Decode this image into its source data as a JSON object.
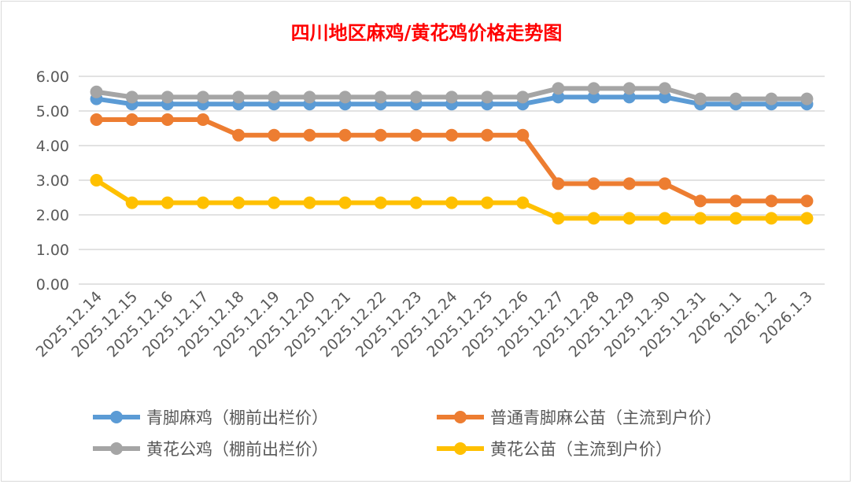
{
  "chart_data": {
    "type": "line",
    "title": "四川地区麻鸡/黄花鸡价格走势图",
    "title_color": "#ff0000",
    "categories": [
      "2025.12.14",
      "2025.12.15",
      "2025.12.16",
      "2025.12.17",
      "2025.12.18",
      "2025.12.19",
      "2025.12.20",
      "2025.12.21",
      "2025.12.22",
      "2025.12.23",
      "2025.12.24",
      "2025.12.25",
      "2025.12.26",
      "2025.12.27",
      "2025.12.28",
      "2025.12.29",
      "2025.12.30",
      "2025.12.31",
      "2026.1.1",
      "2026.1.2",
      "2026.1.3"
    ],
    "ylim": [
      0,
      6
    ],
    "yticks": [
      "0.00",
      "1.00",
      "2.00",
      "3.00",
      "4.00",
      "5.00",
      "6.00"
    ],
    "grid": true,
    "legend_position": "bottom",
    "series": [
      {
        "name": "青脚麻鸡（棚前出栏价）",
        "color": "#5b9bd5",
        "values": [
          5.35,
          5.2,
          5.2,
          5.2,
          5.2,
          5.2,
          5.2,
          5.2,
          5.2,
          5.2,
          5.2,
          5.2,
          5.2,
          5.4,
          5.4,
          5.4,
          5.4,
          5.2,
          5.2,
          5.2,
          5.2
        ]
      },
      {
        "name": "普通青脚麻公苗（主流到户价）",
        "color": "#ed7d31",
        "values": [
          4.75,
          4.75,
          4.75,
          4.75,
          4.3,
          4.3,
          4.3,
          4.3,
          4.3,
          4.3,
          4.3,
          4.3,
          4.3,
          2.9,
          2.9,
          2.9,
          2.9,
          2.4,
          2.4,
          2.4,
          2.4
        ]
      },
      {
        "name": "黄花公鸡（棚前出栏价）",
        "color": "#a5a5a5",
        "values": [
          5.55,
          5.4,
          5.4,
          5.4,
          5.4,
          5.4,
          5.4,
          5.4,
          5.4,
          5.4,
          5.4,
          5.4,
          5.4,
          5.65,
          5.65,
          5.65,
          5.65,
          5.35,
          5.35,
          5.35,
          5.35
        ]
      },
      {
        "name": "黄花公苗（主流到户价）",
        "color": "#ffc000",
        "values": [
          3.0,
          2.35,
          2.35,
          2.35,
          2.35,
          2.35,
          2.35,
          2.35,
          2.35,
          2.35,
          2.35,
          2.35,
          2.35,
          1.9,
          1.9,
          1.9,
          1.9,
          1.9,
          1.9,
          1.9,
          1.9
        ]
      }
    ]
  }
}
